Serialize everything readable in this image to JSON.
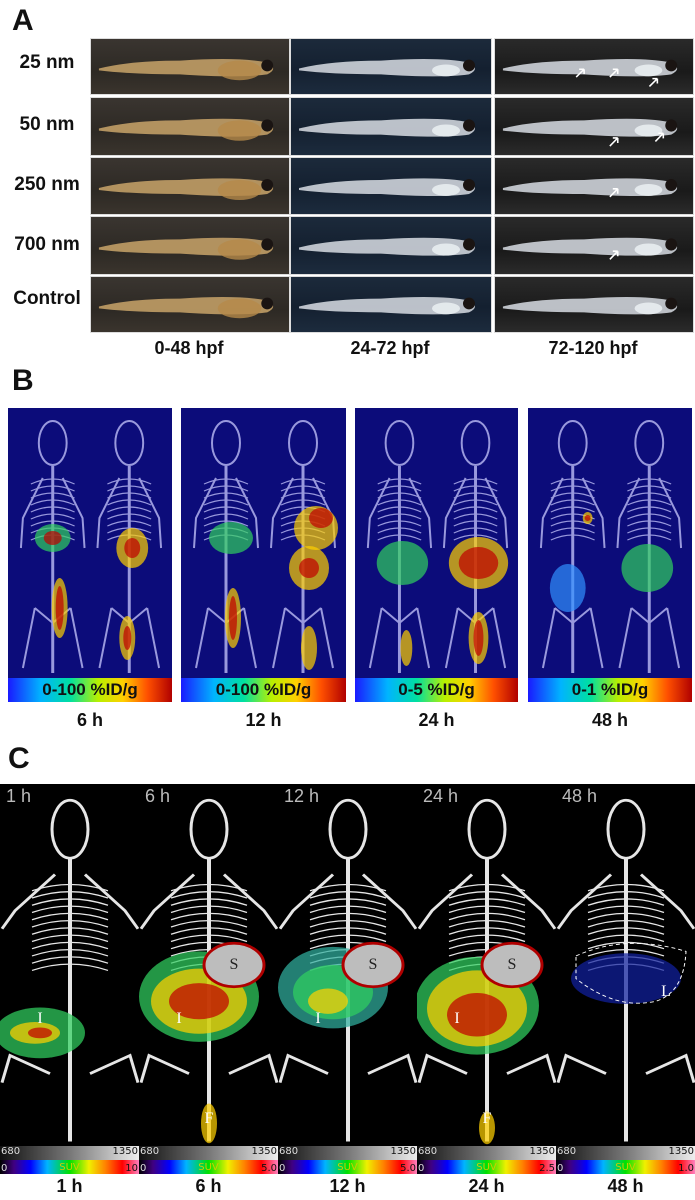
{
  "panel_a": {
    "letter": "A",
    "rows": [
      "25 nm",
      "50 nm",
      "250 nm",
      "700 nm",
      "Control"
    ],
    "columns": [
      "0-48 hpf",
      "24-72 hpf",
      "72-120 hpf"
    ]
  },
  "panel_b": {
    "letter": "B",
    "panels": [
      {
        "scale": "0-100 %ID/g",
        "time": "6 h"
      },
      {
        "scale": "0-100 %ID/g",
        "time": "12 h"
      },
      {
        "scale": "0-5 %ID/g",
        "time": "24 h"
      },
      {
        "scale": "0-1 %ID/g",
        "time": "48 h"
      }
    ]
  },
  "panel_c": {
    "letter": "C",
    "panels": [
      {
        "corner": "1 h",
        "time": "1 h",
        "suv_min": "0",
        "suv_max": "10",
        "ct_min": "680",
        "ct_max": "1350",
        "suv_label": "SUV",
        "organs": [
          "I"
        ]
      },
      {
        "corner": "6 h",
        "time": "6 h",
        "suv_min": "0",
        "suv_max": "5.0",
        "ct_min": "680",
        "ct_max": "1350",
        "suv_label": "SUV",
        "organs": [
          "S",
          "I",
          "F"
        ]
      },
      {
        "corner": "12 h",
        "time": "12 h",
        "suv_min": "0",
        "suv_max": "5.0",
        "ct_min": "680",
        "ct_max": "1350",
        "suv_label": "SUV",
        "organs": [
          "S",
          "I"
        ]
      },
      {
        "corner": "24 h",
        "time": "24 h",
        "suv_min": "0",
        "suv_max": "2.5",
        "ct_min": "680",
        "ct_max": "1350",
        "suv_label": "SUV",
        "organs": [
          "S",
          "I",
          "F"
        ]
      },
      {
        "corner": "48 h",
        "time": "48 h",
        "suv_min": "0",
        "suv_max": "1.0",
        "ct_min": "680",
        "ct_max": "1350",
        "suv_label": "SUV",
        "organs": [
          "L"
        ]
      }
    ]
  },
  "colors": {
    "pet_background": "#0c0c7a",
    "ct_background": "#000000",
    "hotspot_red": "#c00000",
    "hotspot_yellow": "#ffd000",
    "hotspot_green": "#30d060"
  }
}
